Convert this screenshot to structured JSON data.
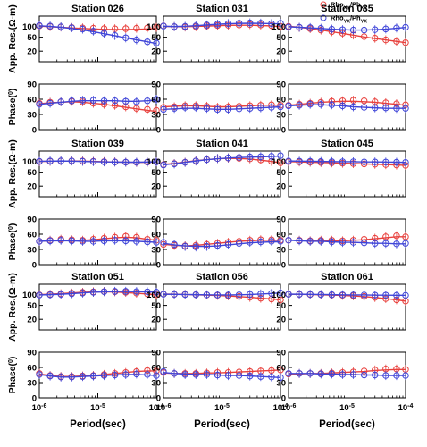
{
  "chart_data": {
    "type": "scatter",
    "layout_rows": 3,
    "layout_cols": 3,
    "x_axis": {
      "label": "Period(sec)",
      "scale": "log",
      "range": [
        1e-06,
        0.0001
      ],
      "tick_labels": [
        {
          "base": "10",
          "exp": "-6"
        },
        {
          "base": "10",
          "exp": "-5"
        },
        {
          "base": "10",
          "exp": "-4"
        }
      ]
    },
    "rho_axis": {
      "label_main": "App. Res.(",
      "label_unit": "Ω-m",
      "label_close": ")",
      "scale": "log",
      "range": [
        10,
        200
      ]
    },
    "phase_axis": {
      "label_main": "Phase(",
      "label_sup": "0",
      "label_close": ")",
      "range": [
        0,
        90
      ],
      "ticks": [
        "0",
        "30",
        "60",
        "90"
      ]
    },
    "legend": {
      "placement": "top-right",
      "entries": [
        {
          "main": "Rho",
          "sub": "XY",
          "sep": "/Ph",
          "sub2": "XY",
          "color": "#e8403c"
        },
        {
          "main": "Rho",
          "sub": "YX",
          "sep": "/Ph",
          "sub2": "YX",
          "color": "#3f45d8"
        }
      ]
    },
    "series_colors": {
      "xy": "#e8403c",
      "yx": "#3f45d8"
    },
    "periods": [
      1e-06,
      1.53e-06,
      2.34e-06,
      3.58e-06,
      5.48e-06,
      8.38e-06,
      1.28e-05,
      1.96e-05,
      3e-05,
      4.59e-05,
      7.02e-05,
      0.0001
    ],
    "stations": [
      {
        "title": "Station 026",
        "rho_ticks": [
          "100",
          "50",
          "20"
        ],
        "rho_xy_obs": [
          105,
          101,
          98,
          95,
          92,
          90,
          88,
          87,
          88,
          90,
          92,
          95
        ],
        "rho_yx_obs": [
          108,
          104,
          99,
          93,
          85,
          75,
          65,
          56,
          48,
          42,
          37,
          34
        ],
        "rho_xy_fit": [
          104,
          100,
          96,
          92,
          89,
          86,
          84,
          83,
          83,
          84,
          86,
          88
        ],
        "rho_yx_fit": [
          106,
          102,
          96,
          89,
          81,
          72,
          63,
          55,
          48,
          42,
          37,
          33
        ],
        "ph_xy_obs": [
          52,
          54,
          55,
          56,
          55,
          52,
          50,
          48,
          45,
          42,
          40,
          38
        ],
        "ph_yx_obs": [
          50,
          52,
          55,
          57,
          58,
          58,
          57,
          57,
          56,
          55,
          57,
          60
        ],
        "ph_xy_fit": [
          51,
          53,
          54,
          55,
          54,
          52,
          50,
          47,
          44,
          41,
          38,
          36
        ],
        "ph_yx_fit": [
          50,
          52,
          54,
          56,
          57,
          57,
          57,
          57,
          56,
          56,
          57,
          58
        ]
      },
      {
        "title": "Station 031",
        "rho_ticks": [
          "100",
          "50",
          "20"
        ],
        "rho_xy_obs": [
          105,
          100,
          98,
          100,
          105,
          108,
          110,
          112,
          115,
          112,
          108,
          102
        ],
        "rho_yx_obs": [
          104,
          100,
          102,
          106,
          112,
          118,
          122,
          126,
          128,
          126,
          122,
          125
        ],
        "rho_xy_fit": [
          102,
          100,
          100,
          102,
          104,
          107,
          109,
          110,
          110,
          108,
          105,
          100
        ],
        "rho_yx_fit": [
          103,
          101,
          103,
          107,
          112,
          117,
          121,
          124,
          125,
          124,
          122,
          120
        ],
        "ph_xy_obs": [
          44,
          45,
          47,
          47,
          46,
          44,
          45,
          46,
          47,
          48,
          49,
          48
        ],
        "ph_yx_obs": [
          40,
          42,
          44,
          44,
          42,
          40,
          40,
          41,
          42,
          43,
          44,
          45
        ],
        "ph_xy_fit": [
          45,
          46,
          47,
          47,
          46,
          45,
          45,
          46,
          47,
          48,
          48,
          48
        ],
        "ph_yx_fit": [
          40,
          41,
          42,
          42,
          41,
          40,
          40,
          41,
          42,
          43,
          44,
          45
        ]
      },
      {
        "title": "Station 035",
        "rho_ticks": [
          "100",
          "50",
          "20"
        ],
        "rho_xy_obs": [
          102,
          95,
          88,
          80,
          72,
          65,
          58,
          52,
          47,
          42,
          38,
          35
        ],
        "rho_yx_obs": [
          98,
          96,
          94,
          90,
          85,
          82,
          80,
          80,
          82,
          86,
          92,
          96
        ],
        "rho_xy_fit": [
          103,
          96,
          88,
          80,
          72,
          64,
          57,
          51,
          46,
          42,
          38,
          35
        ],
        "rho_yx_fit": [
          99,
          96,
          93,
          89,
          85,
          82,
          80,
          80,
          82,
          85,
          90,
          95
        ],
        "ph_xy_obs": [
          48,
          50,
          52,
          54,
          56,
          57,
          58,
          57,
          55,
          53,
          51,
          49
        ],
        "ph_yx_obs": [
          47,
          48,
          50,
          50,
          49,
          47,
          45,
          44,
          43,
          43,
          42,
          42
        ],
        "ph_xy_fit": [
          48,
          50,
          52,
          54,
          55,
          56,
          56,
          55,
          54,
          52,
          50,
          48
        ],
        "ph_yx_fit": [
          47,
          48,
          49,
          49,
          48,
          47,
          45,
          44,
          43,
          42,
          42,
          42
        ]
      },
      {
        "title": "Station 039",
        "rho_ticks": [
          "100",
          "50",
          "20"
        ],
        "rho_xy_obs": [
          100,
          102,
          104,
          105,
          104,
          102,
          100,
          98,
          96,
          95,
          96,
          98
        ],
        "rho_yx_obs": [
          102,
          104,
          105,
          104,
          102,
          100,
          98,
          97,
          96,
          96,
          97,
          98
        ],
        "rho_xy_fit": [
          101,
          102,
          103,
          104,
          103,
          101,
          99,
          97,
          96,
          95,
          96,
          97
        ],
        "rho_yx_fit": [
          102,
          103,
          104,
          103,
          101,
          99,
          98,
          97,
          96,
          96,
          97,
          98
        ],
        "ph_xy_obs": [
          46,
          48,
          50,
          49,
          48,
          50,
          52,
          54,
          56,
          54,
          50,
          48
        ],
        "ph_yx_obs": [
          46,
          47,
          48,
          47,
          46,
          46,
          47,
          48,
          47,
          46,
          45,
          44
        ],
        "ph_xy_fit": [
          46,
          47,
          48,
          48,
          48,
          49,
          51,
          53,
          54,
          53,
          50,
          48
        ],
        "ph_yx_fit": [
          46,
          47,
          47,
          47,
          46,
          46,
          47,
          47,
          47,
          46,
          45,
          44
        ]
      },
      {
        "title": "Station 041",
        "rho_ticks": [
          "100",
          "50",
          "20"
        ],
        "rho_xy_obs": [
          82,
          88,
          96,
          105,
          115,
          122,
          126,
          124,
          120,
          112,
          102,
          92
        ],
        "rho_yx_obs": [
          80,
          86,
          95,
          104,
          114,
          122,
          128,
          132,
          136,
          138,
          142,
          148
        ],
        "rho_xy_fit": [
          83,
          89,
          97,
          106,
          114,
          121,
          124,
          123,
          118,
          110,
          101,
          92
        ],
        "rho_yx_fit": [
          81,
          87,
          95,
          104,
          113,
          121,
          127,
          131,
          134,
          137,
          140,
          144
        ],
        "ph_xy_obs": [
          40,
          38,
          37,
          38,
          40,
          42,
          44,
          46,
          48,
          49,
          49,
          48
        ],
        "ph_yx_obs": [
          44,
          40,
          36,
          35,
          36,
          38,
          40,
          42,
          44,
          45,
          46,
          46
        ],
        "ph_xy_fit": [
          40,
          38,
          37,
          38,
          40,
          42,
          44,
          46,
          47,
          48,
          48,
          48
        ],
        "ph_yx_fit": [
          42,
          39,
          37,
          36,
          36,
          37,
          39,
          41,
          43,
          44,
          45,
          45
        ]
      },
      {
        "title": "Station 045",
        "rho_ticks": [
          "100",
          "50",
          "20"
        ],
        "rho_xy_obs": [
          100,
          98,
          96,
          94,
          92,
          90,
          88,
          86,
          84,
          82,
          80,
          78
        ],
        "rho_yx_obs": [
          104,
          103,
          102,
          101,
          100,
          99,
          99,
          98,
          98,
          97,
          96,
          95
        ],
        "rho_xy_fit": [
          100,
          98,
          96,
          94,
          92,
          90,
          88,
          86,
          84,
          82,
          80,
          78
        ],
        "rho_yx_fit": [
          104,
          103,
          102,
          101,
          100,
          99,
          99,
          98,
          98,
          97,
          96,
          95
        ],
        "ph_xy_obs": [
          48,
          48,
          47,
          48,
          48,
          47,
          48,
          50,
          52,
          55,
          57,
          55
        ],
        "ph_yx_obs": [
          48,
          47,
          46,
          46,
          45,
          44,
          44,
          43,
          42,
          42,
          41,
          42
        ],
        "ph_xy_fit": [
          48,
          48,
          47,
          47,
          47,
          47,
          48,
          49,
          51,
          53,
          55,
          55
        ],
        "ph_yx_fit": [
          48,
          47,
          46,
          46,
          45,
          44,
          44,
          43,
          42,
          42,
          41,
          41
        ]
      },
      {
        "title": "Station 051",
        "rho_ticks": [
          "100",
          "50",
          "20"
        ],
        "rho_xy_obs": [
          100,
          103,
          107,
          112,
          118,
          122,
          124,
          122,
          118,
          112,
          106,
          100
        ],
        "rho_yx_obs": [
          98,
          100,
          103,
          107,
          112,
          118,
          123,
          126,
          126,
          124,
          122,
          120
        ],
        "rho_xy_fit": [
          101,
          104,
          108,
          113,
          118,
          121,
          122,
          120,
          116,
          111,
          105,
          100
        ],
        "rho_yx_fit": [
          99,
          101,
          104,
          108,
          113,
          118,
          122,
          124,
          124,
          123,
          121,
          119
        ],
        "ph_xy_obs": [
          48,
          44,
          42,
          42,
          43,
          44,
          46,
          48,
          50,
          52,
          54,
          53
        ],
        "ph_yx_obs": [
          46,
          43,
          41,
          41,
          42,
          43,
          44,
          45,
          46,
          47,
          46,
          44
        ],
        "ph_xy_fit": [
          47,
          44,
          42,
          42,
          43,
          44,
          46,
          48,
          50,
          52,
          53,
          53
        ],
        "ph_yx_fit": [
          46,
          43,
          41,
          41,
          42,
          43,
          44,
          45,
          46,
          46,
          45,
          44
        ]
      },
      {
        "title": "Station 056",
        "rho_ticks": [
          "100",
          "50",
          "20"
        ],
        "rho_xy_obs": [
          105,
          104,
          103,
          101,
          99,
          97,
          94,
          90,
          85,
          80,
          76,
          72
        ],
        "rho_yx_obs": [
          104,
          103,
          102,
          101,
          100,
          99,
          99,
          100,
          103,
          106,
          110,
          114
        ],
        "rho_xy_fit": [
          105,
          104,
          102,
          100,
          98,
          96,
          93,
          89,
          85,
          80,
          76,
          72
        ],
        "rho_yx_fit": [
          104,
          103,
          102,
          101,
          100,
          99,
          99,
          100,
          102,
          105,
          109,
          113
        ],
        "ph_xy_obs": [
          50,
          48,
          48,
          48,
          49,
          50,
          50,
          51,
          52,
          53,
          54,
          55
        ],
        "ph_yx_obs": [
          52,
          48,
          46,
          46,
          46,
          45,
          44,
          44,
          43,
          42,
          41,
          40
        ],
        "ph_xy_fit": [
          49,
          48,
          48,
          48,
          49,
          49,
          50,
          51,
          52,
          53,
          54,
          55
        ],
        "ph_yx_fit": [
          50,
          48,
          47,
          46,
          46,
          45,
          44,
          44,
          43,
          42,
          41,
          40
        ]
      },
      {
        "title": "Station 061",
        "rho_ticks": [
          "100",
          "50",
          "20"
        ],
        "rho_xy_obs": [
          104,
          103,
          102,
          101,
          99,
          97,
          94,
          90,
          84,
          78,
          72,
          66
        ],
        "rho_yx_obs": [
          104,
          104,
          103,
          102,
          101,
          100,
          99,
          99,
          98,
          98,
          97,
          97
        ],
        "rho_xy_fit": [
          104,
          103,
          102,
          100,
          98,
          96,
          93,
          89,
          84,
          78,
          72,
          66
        ],
        "rho_yx_fit": [
          104,
          104,
          103,
          102,
          101,
          100,
          99,
          99,
          98,
          98,
          97,
          97
        ],
        "ph_xy_obs": [
          47,
          48,
          48,
          48,
          49,
          50,
          51,
          53,
          55,
          57,
          57,
          56
        ],
        "ph_yx_obs": [
          48,
          48,
          48,
          47,
          47,
          46,
          46,
          45,
          45,
          44,
          44,
          44
        ],
        "ph_xy_fit": [
          47,
          47,
          48,
          48,
          49,
          50,
          51,
          52,
          54,
          55,
          56,
          56
        ],
        "ph_yx_fit": [
          48,
          48,
          48,
          47,
          47,
          46,
          46,
          45,
          45,
          44,
          44,
          44
        ]
      }
    ]
  }
}
